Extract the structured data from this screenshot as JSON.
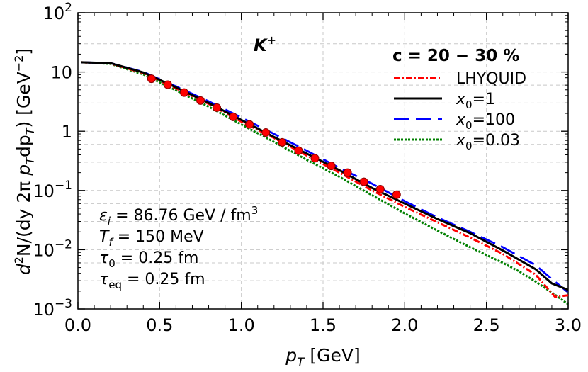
{
  "chart_data": {
    "type": "line",
    "xlabel": {
      "var": "p",
      "sub": "T",
      "unit": " [GeV]"
    },
    "ylabel": {
      "p1": "d",
      "p1sup": "2",
      "p2": "N/(dy 2π ",
      "p3": "p",
      "p3sub": "T",
      "p4": "dp",
      "p4sub": "T",
      "p5": ") [GeV",
      "p5sup": "−2",
      "p6": "]"
    },
    "xlim": [
      0.0,
      3.0
    ],
    "ylim": [
      0.001,
      100
    ],
    "y_scale": "log",
    "grid": true,
    "x_ticks": [
      "0.0",
      "0.5",
      "1.0",
      "1.5",
      "2.0",
      "2.5",
      "3.0"
    ],
    "y_ticks": [
      {
        "base": "10",
        "exp": "2"
      },
      {
        "base": "10",
        "exp": ""
      },
      {
        "base": "1",
        "exp": ""
      },
      {
        "base": "10",
        "exp": "−1"
      },
      {
        "base": "10",
        "exp": "−2"
      },
      {
        "base": "10",
        "exp": "−3"
      }
    ],
    "particle": {
      "base": "K",
      "sup": "+"
    },
    "legend_title": "c = 20 − 30 %",
    "legend_position": "top-right",
    "series": [
      {
        "name": "LHYQUID",
        "color": "#ff0000",
        "dash": "dashdot",
        "points": [
          [
            0.02,
            14.6
          ],
          [
            0.2,
            13.9
          ],
          [
            0.4,
            9.6
          ],
          [
            0.6,
            5.3
          ],
          [
            0.8,
            2.9
          ],
          [
            1.0,
            1.45
          ],
          [
            1.2,
            0.77
          ],
          [
            1.4,
            0.39
          ],
          [
            1.6,
            0.2
          ],
          [
            1.8,
            0.1
          ],
          [
            2.0,
            0.053
          ],
          [
            2.2,
            0.029
          ],
          [
            2.4,
            0.016
          ],
          [
            2.6,
            0.0085
          ],
          [
            2.8,
            0.0038
          ],
          [
            2.92,
            0.0016
          ],
          [
            3.0,
            0.0017
          ]
        ]
      },
      {
        "name": "x₀=1",
        "label": {
          "base": "x",
          "sub": "0",
          "rest": "=1"
        },
        "color": "#000000",
        "dash": "solid",
        "points": [
          [
            0.02,
            14.6
          ],
          [
            0.2,
            14.1
          ],
          [
            0.4,
            9.8
          ],
          [
            0.6,
            5.5
          ],
          [
            0.8,
            3.0
          ],
          [
            1.0,
            1.55
          ],
          [
            1.2,
            0.8
          ],
          [
            1.4,
            0.42
          ],
          [
            1.6,
            0.22
          ],
          [
            1.8,
            0.11
          ],
          [
            2.0,
            0.06
          ],
          [
            2.2,
            0.033
          ],
          [
            2.4,
            0.019
          ],
          [
            2.6,
            0.0097
          ],
          [
            2.8,
            0.0047
          ],
          [
            2.9,
            0.0027
          ],
          [
            3.0,
            0.0021
          ]
        ]
      },
      {
        "name": "x₀=100",
        "label": {
          "base": "x",
          "sub": "0",
          "rest": "=100"
        },
        "color": "#0000ff",
        "dash": "longdash",
        "points": [
          [
            0.02,
            14.6
          ],
          [
            0.2,
            14.1
          ],
          [
            0.4,
            10.0
          ],
          [
            0.6,
            5.7
          ],
          [
            0.8,
            3.2
          ],
          [
            1.0,
            1.7
          ],
          [
            1.2,
            0.9
          ],
          [
            1.4,
            0.47
          ],
          [
            1.6,
            0.24
          ],
          [
            1.8,
            0.13
          ],
          [
            2.0,
            0.066
          ],
          [
            2.2,
            0.035
          ],
          [
            2.4,
            0.02
          ],
          [
            2.6,
            0.011
          ],
          [
            2.8,
            0.0055
          ],
          [
            2.9,
            0.0032
          ],
          [
            3.0,
            0.0019
          ]
        ]
      },
      {
        "name": "x₀=0.03",
        "label": {
          "base": "x",
          "sub": "0",
          "rest": "=0.03"
        },
        "color": "#008000",
        "dash": "dotted",
        "points": [
          [
            0.02,
            14.6
          ],
          [
            0.2,
            13.7
          ],
          [
            0.4,
            9.1
          ],
          [
            0.6,
            4.9
          ],
          [
            0.8,
            2.6
          ],
          [
            1.0,
            1.3
          ],
          [
            1.2,
            0.66
          ],
          [
            1.4,
            0.33
          ],
          [
            1.6,
            0.17
          ],
          [
            1.8,
            0.083
          ],
          [
            2.0,
            0.041
          ],
          [
            2.2,
            0.021
          ],
          [
            2.4,
            0.011
          ],
          [
            2.6,
            0.006
          ],
          [
            2.7,
            0.0043
          ],
          [
            2.8,
            0.0029
          ],
          [
            2.9,
            0.0019
          ],
          [
            3.0,
            0.0012
          ]
        ]
      }
    ],
    "data_points": {
      "color": "#ff0000",
      "points": [
        [
          0.45,
          7.7
        ],
        [
          0.55,
          6.1
        ],
        [
          0.65,
          4.5
        ],
        [
          0.75,
          3.3
        ],
        [
          0.85,
          2.5
        ],
        [
          0.95,
          1.75
        ],
        [
          1.05,
          1.3
        ],
        [
          1.15,
          0.95
        ],
        [
          1.25,
          0.65
        ],
        [
          1.35,
          0.47
        ],
        [
          1.45,
          0.35
        ],
        [
          1.55,
          0.26
        ],
        [
          1.65,
          0.2
        ],
        [
          1.75,
          0.14
        ],
        [
          1.85,
          0.105
        ],
        [
          1.95,
          0.085
        ]
      ]
    },
    "params": [
      {
        "sym": "ε",
        "sub": "i",
        "val": " = 86.76 GeV / fm",
        "sup": "3"
      },
      {
        "sym": "T",
        "sub": "f",
        "val": " = 150 MeV",
        "sup": ""
      },
      {
        "sym": "τ",
        "sub": "0",
        "val": " = 0.25 fm",
        "sup": ""
      },
      {
        "sym": "τ",
        "sub": "eq",
        "val": " = 0.25 fm",
        "sup": ""
      }
    ]
  }
}
